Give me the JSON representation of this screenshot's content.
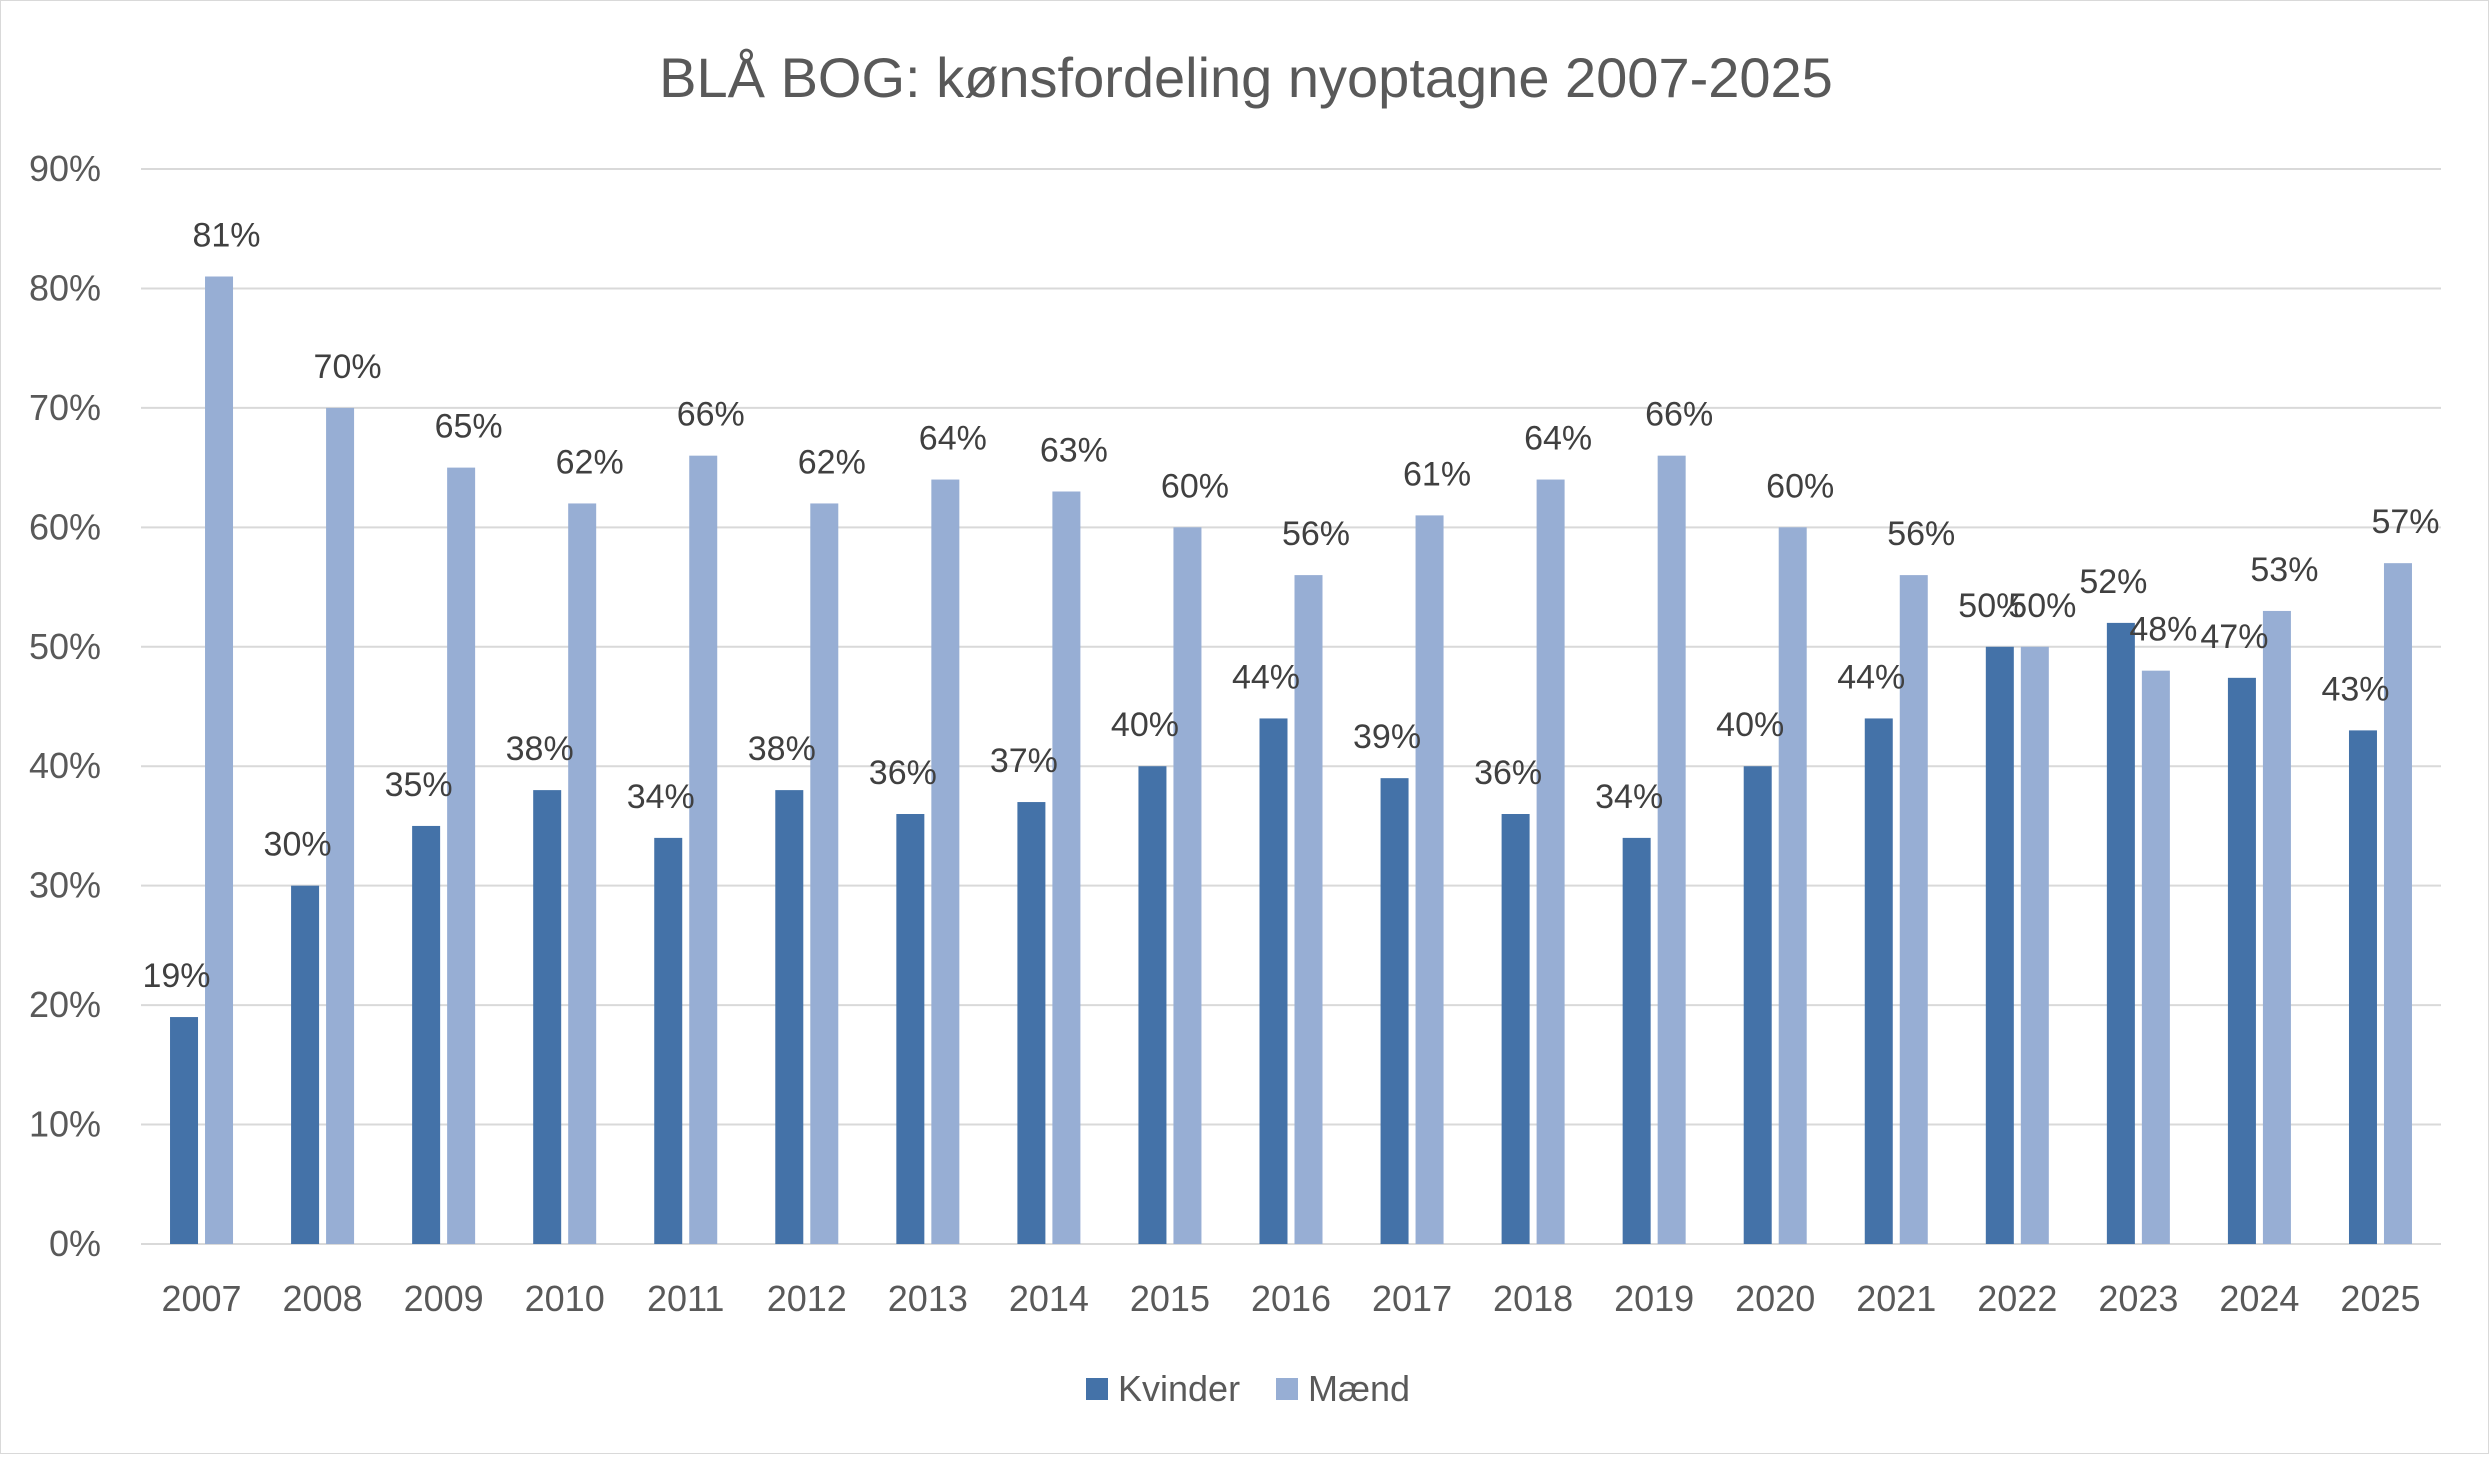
{
  "chart_data": {
    "type": "bar",
    "title": "BLÅ BOG: kønsfordeling nyoptagne 2007-2025",
    "xlabel": "",
    "ylabel": "",
    "ylim": [
      0,
      90
    ],
    "y_ticks": [
      "0%",
      "10%",
      "20%",
      "30%",
      "40%",
      "50%",
      "60%",
      "70%",
      "80%",
      "90%"
    ],
    "grid": true,
    "legend_position": "bottom",
    "categories": [
      "2007",
      "2008",
      "2009",
      "2010",
      "2011",
      "2012",
      "2013",
      "2014",
      "2015",
      "2016",
      "2017",
      "2018",
      "2019",
      "2020",
      "2021",
      "2022",
      "2023",
      "2024",
      "2025"
    ],
    "series": [
      {
        "name": "Kvinder",
        "color": "#4472a8",
        "values": [
          19,
          30,
          35,
          38,
          34,
          38,
          36,
          37,
          40,
          44,
          39,
          36,
          34,
          40,
          44,
          50,
          52,
          47.4,
          43
        ],
        "labels": [
          "19%",
          "30%",
          "35%",
          "38%",
          "34%",
          "38%",
          "36%",
          "37%",
          "40%",
          "44%",
          "39%",
          "36%",
          "34%",
          "40%",
          "44%",
          "50%",
          "52%",
          "47%",
          "43%"
        ]
      },
      {
        "name": "Mænd",
        "color": "#97aed4",
        "values": [
          81,
          70,
          65,
          62,
          66,
          62,
          64,
          63,
          60,
          56,
          61,
          64,
          66,
          60,
          56,
          50,
          48,
          53,
          57
        ],
        "labels": [
          "81%",
          "70%",
          "65%",
          "62%",
          "66%",
          "62%",
          "64%",
          "63%",
          "60%",
          "56%",
          "61%",
          "64%",
          "66%",
          "60%",
          "56%",
          "50%",
          "48%",
          "53%",
          "57%"
        ]
      }
    ]
  }
}
